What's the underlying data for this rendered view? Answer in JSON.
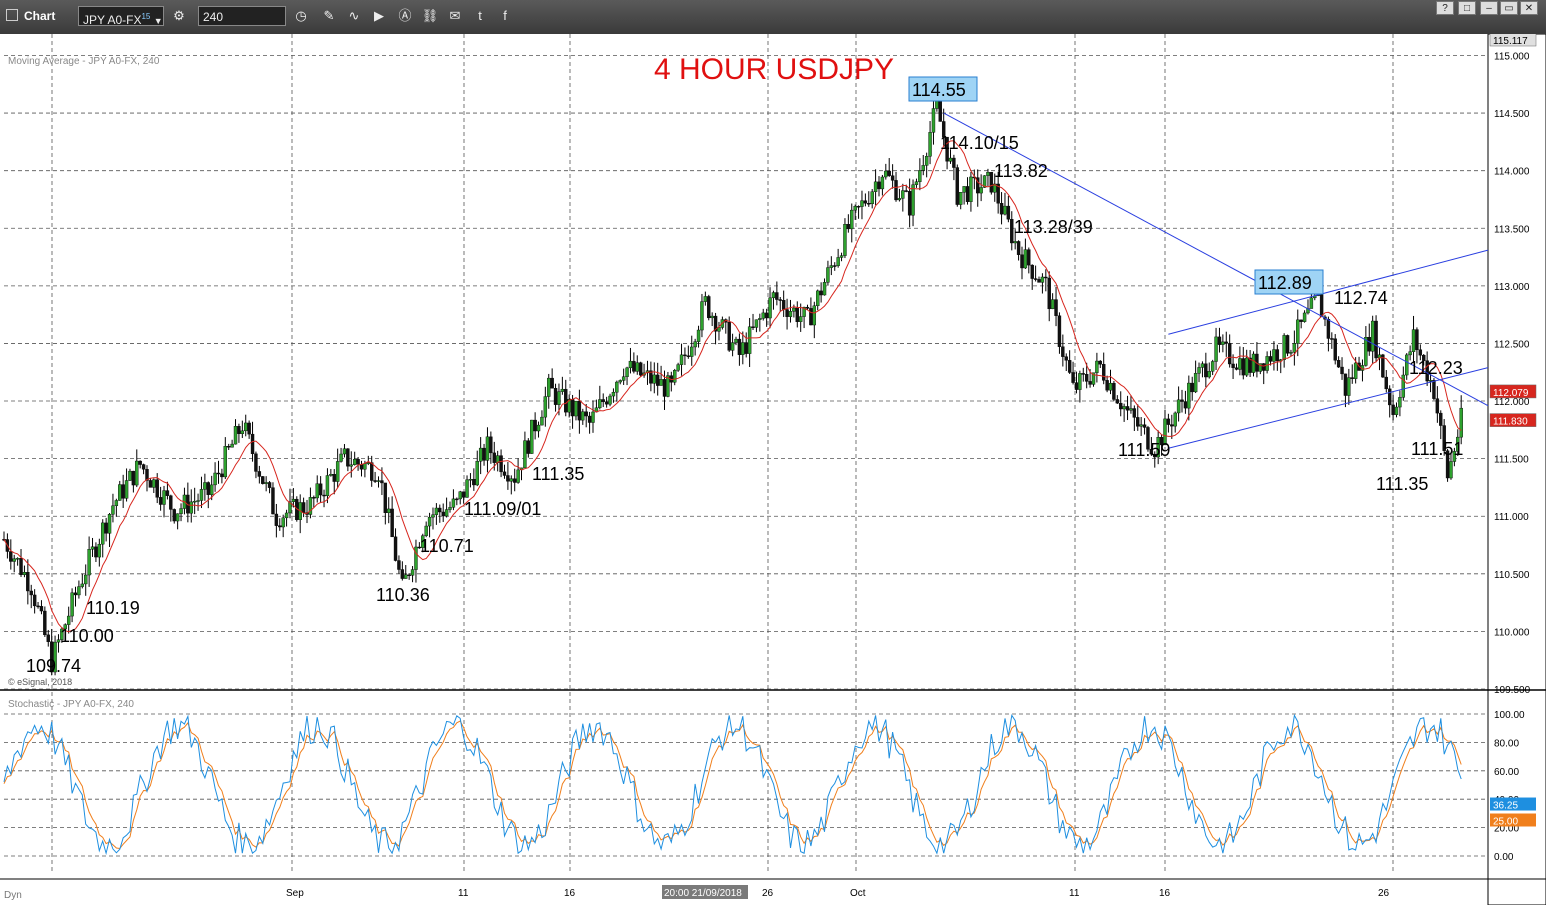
{
  "window": {
    "title": "Chart",
    "symbol": "JPY A0-FX",
    "symbol_sup": "15",
    "interval": "240",
    "controls": [
      "?",
      "□",
      "–",
      "▭",
      "✕"
    ]
  },
  "chart_data": [
    {
      "type": "candlestick",
      "title": "4 HOUR USDJPY",
      "subtitle": "Moving Average - JPY A0-FX, 240",
      "copyright": "© eSignal, 2018",
      "ylim": [
        109.5,
        115.117
      ],
      "y_ticks": [
        "115.000",
        "114.500",
        "114.000",
        "113.500",
        "113.000",
        "112.500",
        "112.000",
        "111.500",
        "111.000",
        "110.500",
        "110.000",
        "109.500"
      ],
      "x_ticks": [
        "Sep",
        "11",
        "16",
        "26",
        "Oct",
        "11",
        "16",
        "26"
      ],
      "crosshair_label": "20:00 21/09/2018",
      "price_tags": [
        {
          "label": "115.117",
          "value": 115.117,
          "color": "#e0e0e0"
        },
        {
          "label": "112.079",
          "value": 112.079,
          "color": "#d7261e"
        },
        {
          "label": "111.830",
          "value": 111.83,
          "color": "#d7261e"
        }
      ],
      "annotations": [
        {
          "text": "114.55",
          "boxed": true
        },
        {
          "text": "114.10/15"
        },
        {
          "text": "113.82"
        },
        {
          "text": "113.28/39"
        },
        {
          "text": "112.89",
          "boxed": true
        },
        {
          "text": "112.74"
        },
        {
          "text": "112.23"
        },
        {
          "text": "111.59"
        },
        {
          "text": "111.51"
        },
        {
          "text": "111.35"
        },
        {
          "text": "111.35"
        },
        {
          "text": "111.09/01"
        },
        {
          "text": "110.71"
        },
        {
          "text": "110.36"
        },
        {
          "text": "110.19"
        },
        {
          "text": "110.00"
        },
        {
          "text": "109.74"
        }
      ],
      "key_points": [
        {
          "x": 0,
          "y": 110.8
        },
        {
          "x": 8,
          "y": 110.4
        },
        {
          "x": 14,
          "y": 109.74
        },
        {
          "x": 22,
          "y": 110.4
        },
        {
          "x": 32,
          "y": 111.1
        },
        {
          "x": 40,
          "y": 111.45
        },
        {
          "x": 50,
          "y": 111.05
        },
        {
          "x": 60,
          "y": 111.2
        },
        {
          "x": 70,
          "y": 111.8
        },
        {
          "x": 80,
          "y": 111.0
        },
        {
          "x": 90,
          "y": 111.1
        },
        {
          "x": 100,
          "y": 111.5
        },
        {
          "x": 110,
          "y": 111.4
        },
        {
          "x": 117,
          "y": 110.36
        },
        {
          "x": 124,
          "y": 111.0
        },
        {
          "x": 133,
          "y": 111.1
        },
        {
          "x": 142,
          "y": 111.6
        },
        {
          "x": 150,
          "y": 111.35
        },
        {
          "x": 160,
          "y": 112.1
        },
        {
          "x": 172,
          "y": 111.8
        },
        {
          "x": 182,
          "y": 112.3
        },
        {
          "x": 196,
          "y": 112.1
        },
        {
          "x": 206,
          "y": 112.85
        },
        {
          "x": 216,
          "y": 112.4
        },
        {
          "x": 226,
          "y": 112.9
        },
        {
          "x": 236,
          "y": 112.7
        },
        {
          "x": 248,
          "y": 113.5
        },
        {
          "x": 258,
          "y": 114.0
        },
        {
          "x": 266,
          "y": 113.7
        },
        {
          "x": 274,
          "y": 114.55
        },
        {
          "x": 280,
          "y": 113.8
        },
        {
          "x": 290,
          "y": 113.9
        },
        {
          "x": 298,
          "y": 113.3
        },
        {
          "x": 306,
          "y": 113.0
        },
        {
          "x": 314,
          "y": 112.1
        },
        {
          "x": 322,
          "y": 112.3
        },
        {
          "x": 330,
          "y": 111.9
        },
        {
          "x": 338,
          "y": 111.6
        },
        {
          "x": 346,
          "y": 112.0
        },
        {
          "x": 356,
          "y": 112.45
        },
        {
          "x": 366,
          "y": 112.3
        },
        {
          "x": 378,
          "y": 112.5
        },
        {
          "x": 386,
          "y": 112.89
        },
        {
          "x": 394,
          "y": 112.1
        },
        {
          "x": 402,
          "y": 112.6
        },
        {
          "x": 408,
          "y": 111.9
        },
        {
          "x": 414,
          "y": 112.55
        },
        {
          "x": 420,
          "y": 112.1
        },
        {
          "x": 424,
          "y": 111.35
        },
        {
          "x": 428,
          "y": 111.83
        }
      ],
      "moving_average_color": "#d7261e",
      "trendlines_color": "#2a3fe0"
    },
    {
      "type": "line",
      "title": "Stochastic - JPY A0-FX, 240",
      "ylim": [
        0,
        100
      ],
      "y_ticks": [
        "100.00",
        "80.00",
        "60.00",
        "40.00",
        "20.00",
        "0.00"
      ],
      "series": [
        {
          "color": "#1e8fe0",
          "last": 36.25,
          "last_label": "36.25"
        },
        {
          "color": "#f07f1c",
          "last": 25.0,
          "last_label": "25.00"
        }
      ]
    }
  ],
  "footer": {
    "left_label": "Dyn"
  }
}
